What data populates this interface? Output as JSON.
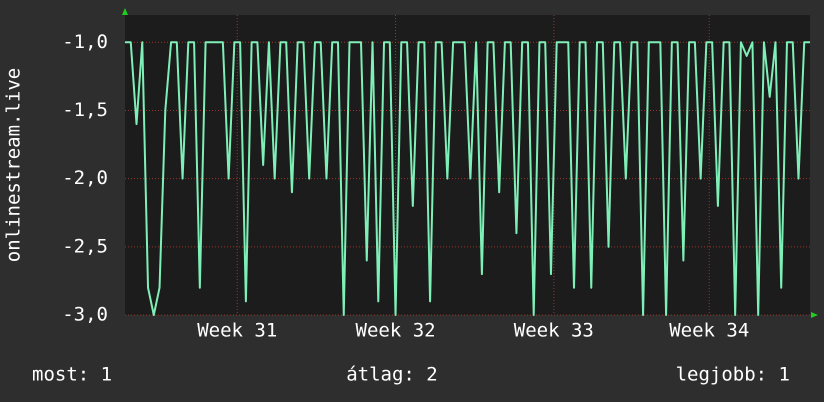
{
  "chart_data": {
    "type": "line",
    "ylabel": "onlinestream.live",
    "values": [
      -1,
      -1,
      -1.6,
      -1,
      -2.8,
      -3,
      -2.8,
      -1.5,
      -1,
      -1,
      -2,
      -1,
      -1,
      -2.8,
      -1,
      -1,
      -1,
      -1,
      -2,
      -1,
      -1,
      -2.9,
      -1,
      -1,
      -1.9,
      -1,
      -2,
      -1,
      -1,
      -2.1,
      -1,
      -1,
      -2,
      -1,
      -1,
      -2,
      -1,
      -1,
      -3,
      -1,
      -1,
      -1,
      -2.6,
      -1,
      -2.9,
      -1,
      -1,
      -3,
      -1,
      -1,
      -2.2,
      -1,
      -1,
      -2.9,
      -1,
      -1,
      -2,
      -1,
      -1,
      -1,
      -2,
      -1,
      -2.7,
      -1,
      -1,
      -2.1,
      -1,
      -1,
      -2.4,
      -1,
      -1,
      -3,
      -1,
      -1,
      -2.7,
      -1,
      -1,
      -1,
      -2.8,
      -1,
      -1,
      -2.8,
      -1,
      -1,
      -2.5,
      -1,
      -1,
      -2,
      -1,
      -1,
      -3,
      -1,
      -1,
      -1,
      -3,
      -1,
      -1,
      -2.6,
      -1,
      -1,
      -2,
      -1,
      -1,
      -2.2,
      -1,
      -1,
      -3,
      -1,
      -1.1,
      -1,
      -3,
      -1,
      -1.4,
      -1,
      -2.8,
      -1,
      -1,
      -2,
      -1,
      -1
    ],
    "color": "#7fefb8",
    "xlim": [
      0,
      119
    ],
    "xticks": [
      {
        "value": 19.5,
        "label": "Week 31"
      },
      {
        "value": 47,
        "label": "Week 32"
      },
      {
        "value": 74.5,
        "label": "Week 33"
      },
      {
        "value": 101.5,
        "label": "Week 34"
      }
    ],
    "ylim": [
      -3,
      -0.8
    ],
    "yticks": [
      {
        "value": -3,
        "label": "-3,0"
      },
      {
        "value": -2.5,
        "label": "-2,5"
      },
      {
        "value": -2,
        "label": "-2,0"
      },
      {
        "value": -1.5,
        "label": "-1,5"
      },
      {
        "value": -1,
        "label": "-1,0"
      }
    ],
    "grid": true,
    "annotations": [
      "most: 1",
      "átlag: 2",
      "legjobb: 1"
    ]
  }
}
